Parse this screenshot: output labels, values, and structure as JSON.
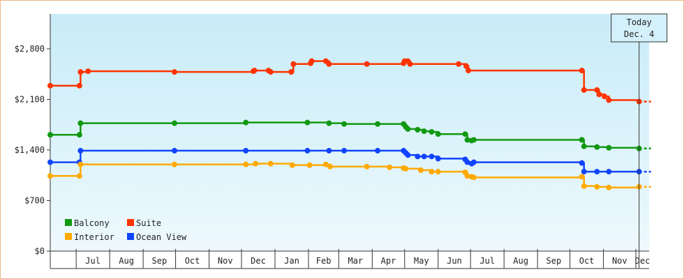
{
  "chart_data": {
    "type": "line",
    "y_axis": {
      "ylim": [
        0,
        2800
      ],
      "ticks": [
        {
          "value": 0,
          "label": "$0"
        },
        {
          "value": 700,
          "label": "$700"
        },
        {
          "value": 1400,
          "label": "$1,400"
        },
        {
          "value": 2100,
          "label": "$2,100"
        },
        {
          "value": 2800,
          "label": "$2,800"
        }
      ]
    },
    "x_axis": {
      "xlim": [
        "2021-06-07",
        "2022-12-15"
      ],
      "months": [
        {
          "label": "Jul",
          "start": "2021-07-01"
        },
        {
          "label": "Aug",
          "start": "2021-08-01"
        },
        {
          "label": "Sep",
          "start": "2021-09-01"
        },
        {
          "label": "Oct",
          "start": "2021-10-01"
        },
        {
          "label": "Nov",
          "start": "2021-11-01"
        },
        {
          "label": "Dec",
          "start": "2021-12-01"
        },
        {
          "label": "Jan",
          "start": "2022-01-01"
        },
        {
          "label": "Feb",
          "start": "2022-02-01"
        },
        {
          "label": "Mar",
          "start": "2022-03-01"
        },
        {
          "label": "Apr",
          "start": "2022-04-01"
        },
        {
          "label": "May",
          "start": "2022-05-01"
        },
        {
          "label": "Jun",
          "start": "2022-06-01"
        },
        {
          "label": "Jul",
          "start": "2022-07-01"
        },
        {
          "label": "Aug",
          "start": "2022-08-01"
        },
        {
          "label": "Sep",
          "start": "2022-09-01"
        },
        {
          "label": "Oct",
          "start": "2022-10-01"
        },
        {
          "label": "Nov",
          "start": "2022-11-01"
        },
        {
          "label": "Dec",
          "start": "2022-12-01"
        }
      ],
      "month_end": "2023-01-01"
    },
    "today": {
      "line1": "Today",
      "line2": "Dec. 4",
      "date": "2022-12-04"
    },
    "projection_end": "2022-12-15",
    "legend": {
      "placement": "bottom-left",
      "entries": [
        {
          "name": "Balcony",
          "color": "#119911"
        },
        {
          "name": "Suite",
          "color": "#ff3300"
        },
        {
          "name": "Interior",
          "color": "#ffaa00"
        },
        {
          "name": "Ocean View",
          "color": "#1144ff"
        }
      ]
    },
    "series": [
      {
        "name": "Suite",
        "color": "#ff3300",
        "points": [
          [
            "2021-06-07",
            2290
          ],
          [
            "2021-07-04",
            2290
          ],
          [
            "2021-07-05",
            2480
          ],
          [
            "2021-07-12",
            2490
          ],
          [
            "2021-09-30",
            2480
          ],
          [
            "2021-12-12",
            2490
          ],
          [
            "2021-12-13",
            2500
          ],
          [
            "2021-12-26",
            2500
          ],
          [
            "2021-12-28",
            2480
          ],
          [
            "2022-01-16",
            2480
          ],
          [
            "2022-01-18",
            2590
          ],
          [
            "2022-02-03",
            2600
          ],
          [
            "2022-02-04",
            2630
          ],
          [
            "2022-02-17",
            2630
          ],
          [
            "2022-02-20",
            2590
          ],
          [
            "2022-03-27",
            2590
          ],
          [
            "2022-04-30",
            2600
          ],
          [
            "2022-05-01",
            2630
          ],
          [
            "2022-05-04",
            2630
          ],
          [
            "2022-05-06",
            2590
          ],
          [
            "2022-06-20",
            2590
          ],
          [
            "2022-06-27",
            2560
          ],
          [
            "2022-06-29",
            2500
          ],
          [
            "2022-10-12",
            2500
          ],
          [
            "2022-10-14",
            2230
          ],
          [
            "2022-10-26",
            2230
          ],
          [
            "2022-10-28",
            2170
          ],
          [
            "2022-11-02",
            2140
          ],
          [
            "2022-11-06",
            2090
          ],
          [
            "2022-12-04",
            2070
          ]
        ]
      },
      {
        "name": "Balcony",
        "color": "#119911",
        "points": [
          [
            "2021-06-07",
            1610
          ],
          [
            "2021-07-04",
            1610
          ],
          [
            "2021-07-05",
            1770
          ],
          [
            "2021-09-30",
            1770
          ],
          [
            "2021-12-05",
            1780
          ],
          [
            "2022-01-31",
            1780
          ],
          [
            "2022-02-20",
            1770
          ],
          [
            "2022-03-06",
            1760
          ],
          [
            "2022-04-06",
            1760
          ],
          [
            "2022-04-30",
            1760
          ],
          [
            "2022-05-02",
            1720
          ],
          [
            "2022-05-04",
            1690
          ],
          [
            "2022-05-13",
            1680
          ],
          [
            "2022-05-19",
            1660
          ],
          [
            "2022-05-26",
            1650
          ],
          [
            "2022-06-01",
            1620
          ],
          [
            "2022-06-26",
            1620
          ],
          [
            "2022-06-28",
            1540
          ],
          [
            "2022-07-02",
            1530
          ],
          [
            "2022-07-04",
            1540
          ],
          [
            "2022-10-12",
            1540
          ],
          [
            "2022-10-14",
            1450
          ],
          [
            "2022-10-26",
            1440
          ],
          [
            "2022-11-06",
            1430
          ],
          [
            "2022-12-04",
            1420
          ]
        ]
      },
      {
        "name": "Ocean View",
        "color": "#1144ff",
        "points": [
          [
            "2021-06-07",
            1230
          ],
          [
            "2021-07-04",
            1230
          ],
          [
            "2021-07-05",
            1390
          ],
          [
            "2021-09-30",
            1390
          ],
          [
            "2021-12-05",
            1390
          ],
          [
            "2022-01-31",
            1390
          ],
          [
            "2022-02-20",
            1390
          ],
          [
            "2022-03-06",
            1390
          ],
          [
            "2022-04-06",
            1390
          ],
          [
            "2022-04-30",
            1390
          ],
          [
            "2022-05-02",
            1360
          ],
          [
            "2022-05-04",
            1330
          ],
          [
            "2022-05-13",
            1310
          ],
          [
            "2022-05-19",
            1310
          ],
          [
            "2022-05-26",
            1310
          ],
          [
            "2022-06-01",
            1280
          ],
          [
            "2022-06-26",
            1270
          ],
          [
            "2022-06-28",
            1230
          ],
          [
            "2022-07-02",
            1210
          ],
          [
            "2022-07-04",
            1230
          ],
          [
            "2022-10-12",
            1220
          ],
          [
            "2022-10-14",
            1100
          ],
          [
            "2022-10-26",
            1100
          ],
          [
            "2022-11-06",
            1100
          ],
          [
            "2022-12-04",
            1100
          ]
        ]
      },
      {
        "name": "Interior",
        "color": "#ffaa00",
        "points": [
          [
            "2021-06-07",
            1040
          ],
          [
            "2021-07-04",
            1040
          ],
          [
            "2021-07-05",
            1200
          ],
          [
            "2021-09-30",
            1200
          ],
          [
            "2021-12-05",
            1200
          ],
          [
            "2021-12-14",
            1210
          ],
          [
            "2021-12-28",
            1210
          ],
          [
            "2022-01-17",
            1190
          ],
          [
            "2022-02-02",
            1190
          ],
          [
            "2022-02-17",
            1200
          ],
          [
            "2022-02-21",
            1170
          ],
          [
            "2022-03-27",
            1170
          ],
          [
            "2022-04-17",
            1160
          ],
          [
            "2022-04-30",
            1150
          ],
          [
            "2022-05-02",
            1140
          ],
          [
            "2022-05-16",
            1120
          ],
          [
            "2022-05-26",
            1100
          ],
          [
            "2022-06-01",
            1100
          ],
          [
            "2022-06-26",
            1090
          ],
          [
            "2022-06-28",
            1040
          ],
          [
            "2022-07-02",
            1030
          ],
          [
            "2022-07-04",
            1020
          ],
          [
            "2022-10-12",
            1030
          ],
          [
            "2022-10-14",
            900
          ],
          [
            "2022-10-26",
            890
          ],
          [
            "2022-11-06",
            880
          ],
          [
            "2022-12-04",
            890
          ]
        ]
      }
    ]
  }
}
